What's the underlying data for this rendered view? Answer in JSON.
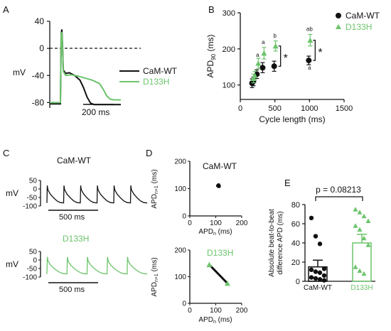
{
  "colors": {
    "wt": "#111111",
    "mut": "#6cc46c",
    "axis": "#111111"
  },
  "panels": {
    "A": "A",
    "B": "B",
    "C": "C",
    "D": "D",
    "E": "E"
  },
  "chart_data": [
    {
      "panel": "A",
      "type": "line",
      "ylabel": "mV",
      "yticks": [
        40,
        0,
        -40,
        -80
      ],
      "ylim": [
        -88,
        40
      ],
      "scalebar_label": "200 ms",
      "series": [
        {
          "name": "CaM-WT",
          "color": "#111111",
          "x": [
            0,
            30,
            32,
            34,
            36,
            38,
            45,
            55,
            70,
            85,
            95,
            105,
            115,
            125,
            135,
            150,
            200
          ],
          "y": [
            -82,
            -82,
            20,
            28,
            4,
            -32,
            -37,
            -36,
            -40,
            -47,
            -58,
            -72,
            -81,
            -83,
            -83,
            -83,
            -83
          ]
        },
        {
          "name": "D133H",
          "color": "#6cc46c",
          "x": [
            0,
            30,
            32,
            34,
            36,
            38,
            45,
            60,
            80,
            100,
            120,
            140,
            150,
            160,
            170,
            180,
            200
          ],
          "y": [
            -80,
            -80,
            20,
            24,
            0,
            -34,
            -40,
            -39,
            -41,
            -44,
            -47,
            -52,
            -60,
            -70,
            -75,
            -76,
            -76
          ]
        }
      ],
      "reference_line": {
        "y": 0,
        "style": "dashed"
      }
    },
    {
      "panel": "B",
      "type": "scatter",
      "xlabel": "Cycle length (ms)",
      "ylabel": "APD",
      "ylabel_sub": "90",
      "ylabel_unit": " (ms)",
      "xticks": [
        0,
        500,
        1000,
        1500
      ],
      "yticks": [
        100,
        200,
        300
      ],
      "xlim": [
        0,
        1500
      ],
      "ylim": [
        60,
        300
      ],
      "series": [
        {
          "name": "CaM-WT",
          "color": "#111111",
          "marker": "circle",
          "x": [
            180,
            200,
            250,
            333,
            500,
            1000
          ],
          "y": [
            105,
            110,
            130,
            148,
            152,
            168
          ],
          "err": [
            12,
            12,
            12,
            14,
            14,
            12
          ]
        },
        {
          "name": "D133H",
          "color": "#6cc46c",
          "marker": "triangle",
          "x": [
            180,
            200,
            250,
            333,
            500,
            1000
          ],
          "y": [
            118,
            126,
            160,
            188,
            208,
            224
          ],
          "err": [
            12,
            12,
            14,
            16,
            14,
            16
          ]
        }
      ],
      "annotations": [
        {
          "text": "a",
          "x": 250,
          "y": 178,
          "color": "#111111"
        },
        {
          "text": "a",
          "x": 333,
          "y": 213,
          "color": "#111111"
        },
        {
          "text": "b",
          "x": 500,
          "y": 231,
          "color": "#111111"
        },
        {
          "text": "ab",
          "x": 1000,
          "y": 250,
          "color": "#111111"
        },
        {
          "text": "a",
          "x": 1000,
          "y": 143,
          "color": "#111111"
        }
      ],
      "significance": [
        {
          "x": 500,
          "y_top": 208,
          "y_bottom": 152,
          "label": "*"
        },
        {
          "x": 1000,
          "y_top": 224,
          "y_bottom": 168,
          "label": "*"
        }
      ]
    },
    {
      "panel": "C-top",
      "type": "line",
      "title": "CaM-WT",
      "ylabel": "mV",
      "yticks": [
        50,
        0,
        -50,
        -100
      ],
      "ylim": [
        -100,
        50
      ],
      "scalebar_label": "500 ms",
      "beats": 6,
      "color": "#111111",
      "beat_shape": {
        "x": [
          0,
          2,
          6,
          20,
          40,
          60,
          80,
          100
        ],
        "y": [
          -82,
          20,
          -5,
          -30,
          -52,
          -70,
          -80,
          -82
        ]
      }
    },
    {
      "panel": "C-bottom",
      "type": "line",
      "title": "D133H",
      "ylabel": "mV",
      "yticks": [
        50,
        0,
        -50,
        -100
      ],
      "ylim": [
        -100,
        50
      ],
      "scalebar_label": "500 ms",
      "beats": 5,
      "color": "#6cc46c",
      "beat_shape": {
        "x": [
          0,
          2,
          6,
          20,
          40,
          60,
          80,
          100
        ],
        "y": [
          -82,
          18,
          -8,
          -32,
          -54,
          -70,
          -80,
          -82
        ]
      }
    },
    {
      "panel": "D-top",
      "type": "scatter",
      "title": "CaM-WT",
      "xlabel": "APD",
      "xlabel_sub": "n",
      "xlabel_unit": " (ms)",
      "ylabel": "APD",
      "ylabel_sub": "n+1",
      "ylabel_unit": " (ms)",
      "xticks": [
        0,
        100,
        200
      ],
      "yticks": [
        0,
        100,
        200
      ],
      "xlim": [
        0,
        200
      ],
      "ylim": [
        0,
        200
      ],
      "color": "#111111",
      "x": [
        108,
        110,
        112,
        109,
        111,
        113,
        110,
        112
      ],
      "y": [
        110,
        112,
        108,
        111,
        113,
        109,
        112,
        110
      ]
    },
    {
      "panel": "D-bottom",
      "type": "scatter",
      "title": "D133H",
      "xlabel": "APD",
      "xlabel_sub": "n",
      "xlabel_unit": " (ms)",
      "ylabel": "APD",
      "ylabel_sub": "n+1",
      "ylabel_unit": " (ms)",
      "xticks": [
        0,
        100,
        200
      ],
      "yticks": [
        0,
        100,
        200
      ],
      "xlim": [
        0,
        200
      ],
      "ylim": [
        0,
        200
      ],
      "color": "#6cc46c",
      "x": [
        75,
        145
      ],
      "y": [
        145,
        75
      ]
    },
    {
      "panel": "E",
      "type": "bar",
      "ylabel": "Absolute beat-to-beat difference APD (ms)",
      "ylabel_lines": [
        "Absolute beat-to-beat",
        "difference APD (ms)"
      ],
      "yticks": [
        0,
        20,
        40,
        60,
        80
      ],
      "ylim": [
        0,
        80
      ],
      "categories": [
        "CaM-WT",
        "D133H"
      ],
      "values": [
        15,
        40
      ],
      "err": [
        7,
        9
      ],
      "colors": [
        "#111111",
        "#6cc46c"
      ],
      "points": [
        [
          66,
          47,
          39,
          13,
          12,
          10,
          9,
          6,
          4,
          3,
          2,
          1
        ],
        [
          75,
          72,
          68,
          63,
          58,
          54,
          45,
          38,
          15,
          11,
          8
        ]
      ],
      "pvalue_label": "p = 0.08213"
    }
  ]
}
